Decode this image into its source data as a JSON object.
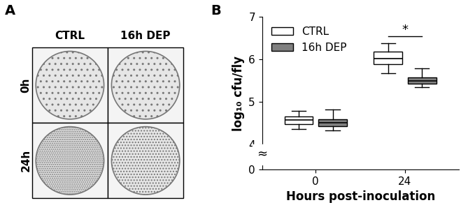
{
  "panel_a": {
    "label": "A",
    "columns": [
      "CTRL",
      "16h DEP"
    ],
    "rows": [
      "0h",
      "24h"
    ]
  },
  "panel_b": {
    "label": "B"
  },
  "chart_data": {
    "type": "box",
    "x_label": "Hours post-inoculation",
    "y_label": "log₁₀ cfu/fly",
    "categories": [
      "0",
      "24"
    ],
    "series": [
      {
        "name": "CTRL",
        "color": "#ffffff",
        "whislo": [
          4.35,
          5.68
        ],
        "q1": [
          4.48,
          5.88
        ],
        "med": [
          4.57,
          6.02
        ],
        "q3": [
          4.65,
          6.18
        ],
        "whishi": [
          4.78,
          6.38
        ]
      },
      {
        "name": "16h DEP",
        "color": "#808080",
        "whislo": [
          4.32,
          5.35
        ],
        "q1": [
          4.42,
          5.43
        ],
        "med": [
          4.5,
          5.5
        ],
        "q3": [
          4.58,
          5.58
        ],
        "whishi": [
          4.82,
          5.78
        ]
      }
    ],
    "ylim": [
      0,
      7
    ],
    "yticks": [
      0,
      4,
      5,
      6,
      7
    ],
    "y_break_mark": "≈",
    "significance": {
      "text": "*",
      "category": "24",
      "y": 6.55
    },
    "legend": "upper left"
  }
}
